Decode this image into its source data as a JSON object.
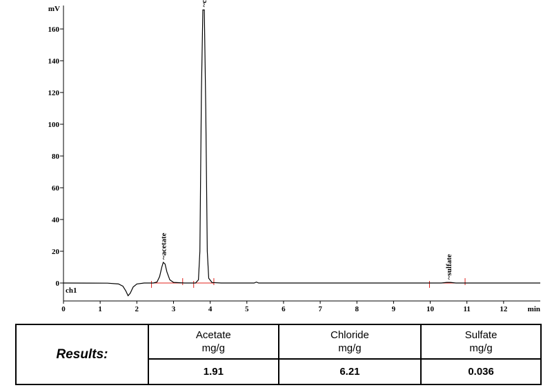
{
  "chart_data": {
    "type": "line",
    "xlabel": "min",
    "ylabel": "mV",
    "xlim": [
      0,
      13
    ],
    "ylim": [
      -5,
      173
    ],
    "x_ticks": [
      0,
      1,
      2,
      3,
      4,
      5,
      6,
      7,
      8,
      9,
      10,
      11,
      12
    ],
    "y_ticks": [
      0,
      20,
      40,
      60,
      80,
      100,
      120,
      140,
      160
    ],
    "channel": "ch1",
    "line_color": "#000000",
    "integration_color": "#e0201b",
    "trace": [
      [
        0,
        0
      ],
      [
        1.2,
        -0.1
      ],
      [
        1.5,
        -0.6
      ],
      [
        1.62,
        -2
      ],
      [
        1.7,
        -5
      ],
      [
        1.76,
        -8
      ],
      [
        1.82,
        -6.5
      ],
      [
        1.9,
        -2.5
      ],
      [
        2.0,
        -0.6
      ],
      [
        2.2,
        0
      ],
      [
        2.45,
        0
      ],
      [
        2.55,
        0.6
      ],
      [
        2.62,
        4
      ],
      [
        2.68,
        10
      ],
      [
        2.72,
        13
      ],
      [
        2.77,
        12
      ],
      [
        2.82,
        7
      ],
      [
        2.9,
        2
      ],
      [
        3.0,
        0.4
      ],
      [
        3.3,
        0
      ],
      [
        3.6,
        0
      ],
      [
        3.68,
        2
      ],
      [
        3.72,
        20
      ],
      [
        3.76,
        120
      ],
      [
        3.8,
        172
      ],
      [
        3.84,
        172
      ],
      [
        3.88,
        110
      ],
      [
        3.92,
        20
      ],
      [
        3.96,
        3
      ],
      [
        4.05,
        0.3
      ],
      [
        4.3,
        0
      ],
      [
        5.2,
        0
      ],
      [
        5.26,
        0.6
      ],
      [
        5.32,
        0
      ],
      [
        10.3,
        0
      ],
      [
        10.45,
        0.4
      ],
      [
        10.55,
        0.4
      ],
      [
        10.7,
        0
      ],
      [
        13,
        0
      ]
    ],
    "peaks": [
      {
        "name": "acetate",
        "time": 2.72,
        "height": 13
      },
      {
        "name": "chloride",
        "time": 3.82,
        "height": 172
      },
      {
        "name": "sulfate",
        "time": 10.5,
        "height": 0.4
      }
    ],
    "baselines": [
      [
        2.4,
        3.25
      ],
      [
        3.55,
        4.1
      ],
      [
        9.98,
        10.95
      ]
    ]
  },
  "results": {
    "title": "Results:",
    "columns": [
      {
        "name": "Acetate",
        "unit": "mg/g",
        "value": "1.91"
      },
      {
        "name": "Chloride",
        "unit": "mg/g",
        "value": "6.21"
      },
      {
        "name": "Sulfate",
        "unit": "mg/g",
        "value": "0.036"
      }
    ]
  }
}
